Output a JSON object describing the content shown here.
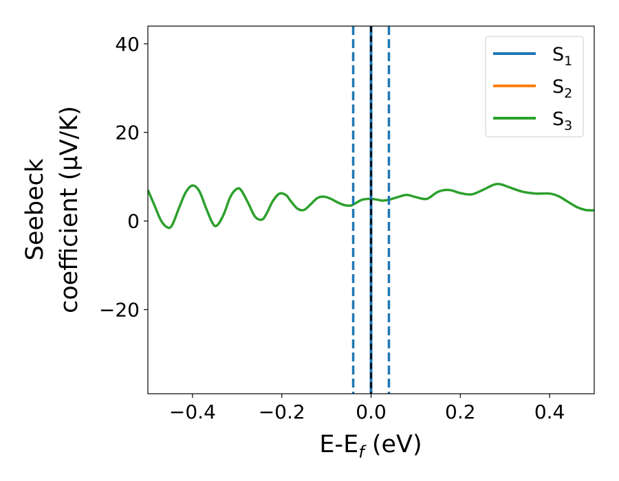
{
  "chart_data": {
    "type": "line",
    "title": "",
    "xlabel": {
      "main": "E-E",
      "sub": "f",
      "tail": " (eV)"
    },
    "ylabel": {
      "line1": "Seebeck",
      "line2": "coefficient  (μV/K)"
    },
    "xlim": [
      -0.5,
      0.5
    ],
    "ylim": [
      -39,
      44
    ],
    "x_ticks": [
      -0.4,
      -0.2,
      0.0,
      0.2,
      0.4
    ],
    "x_tick_labels": [
      "−0.4",
      "−0.2",
      "0.0",
      "0.2",
      "0.4"
    ],
    "y_ticks": [
      -20,
      0,
      20,
      40
    ],
    "y_tick_labels": [
      "−20",
      "0",
      "20",
      "40"
    ],
    "grid": false,
    "legend_position": "top-right",
    "series": [
      {
        "name": "S",
        "sub": "1",
        "color": "#1f77b4"
      },
      {
        "name": "S",
        "sub": "2",
        "color": "#ff7f0e"
      },
      {
        "name": "S",
        "sub": "3",
        "color": "#2ca02c"
      }
    ],
    "curve": {
      "color": "#2ca02c",
      "x": [
        -0.5,
        -0.485,
        -0.47,
        -0.455,
        -0.445,
        -0.43,
        -0.415,
        -0.4,
        -0.385,
        -0.37,
        -0.355,
        -0.345,
        -0.33,
        -0.315,
        -0.3,
        -0.29,
        -0.275,
        -0.26,
        -0.245,
        -0.235,
        -0.22,
        -0.205,
        -0.19,
        -0.18,
        -0.165,
        -0.15,
        -0.135,
        -0.12,
        -0.105,
        -0.09,
        -0.075,
        -0.06,
        -0.045,
        -0.035,
        -0.02,
        -0.005,
        0.0,
        0.015,
        0.025,
        0.04,
        0.06,
        0.08,
        0.1,
        0.125,
        0.15,
        0.175,
        0.2,
        0.225,
        0.25,
        0.275,
        0.29,
        0.31,
        0.34,
        0.37,
        0.4,
        0.42,
        0.44,
        0.46,
        0.48,
        0.5
      ],
      "y": [
        7.0,
        3.5,
        0.0,
        -1.5,
        -0.8,
        3.0,
        6.5,
        8.0,
        6.8,
        3.0,
        -0.5,
        -1.0,
        1.5,
        5.5,
        7.3,
        6.8,
        4.0,
        1.0,
        0.3,
        1.5,
        4.5,
        6.2,
        5.8,
        4.5,
        2.8,
        2.5,
        3.8,
        5.2,
        5.5,
        5.0,
        4.2,
        3.6,
        3.5,
        4.0,
        4.8,
        5.0,
        5.0,
        4.8,
        4.6,
        4.8,
        5.4,
        5.9,
        5.4,
        5.0,
        6.6,
        7.0,
        6.3,
        6.0,
        7.0,
        8.2,
        8.3,
        7.6,
        6.6,
        6.2,
        6.2,
        5.6,
        4.4,
        3.2,
        2.5,
        2.4
      ]
    },
    "vertical_lines": [
      {
        "x": -0.04,
        "style": "dashed",
        "color": "#1f77b4"
      },
      {
        "x": 0.04,
        "style": "dashed",
        "color": "#1f77b4"
      },
      {
        "x": 0.0,
        "style": "solid",
        "color": "#1f77b4"
      },
      {
        "x": 0.0,
        "style": "dashed",
        "color": "#000000"
      }
    ]
  }
}
